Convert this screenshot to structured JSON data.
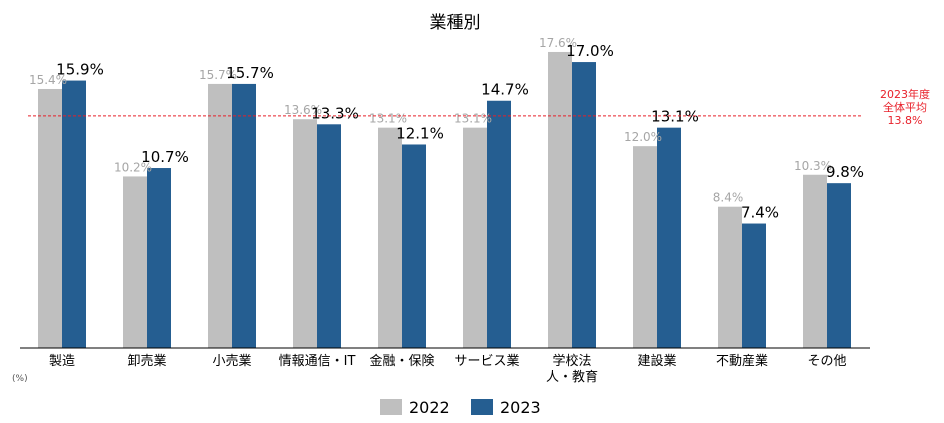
{
  "chart_data": {
    "type": "bar",
    "title": "業種別",
    "unit_label": "(%)",
    "categories": [
      "製造",
      "卸売業",
      "小売業",
      "情報通信・IT",
      "金融・保険",
      "サービス業",
      "学校法\n人・教育",
      "建設業",
      "不動産業",
      "その他"
    ],
    "series": [
      {
        "name": "2022",
        "values": [
          15.4,
          10.2,
          15.7,
          13.6,
          13.1,
          13.1,
          17.6,
          12.0,
          8.4,
          10.3
        ],
        "labels": [
          "15.4%",
          "10.2%",
          "15.7%",
          "13.6%",
          "13.1%",
          "13.1%",
          "17.6%",
          "12.0%",
          "8.4%",
          "10.3%"
        ]
      },
      {
        "name": "2023",
        "values": [
          15.9,
          10.7,
          15.7,
          13.3,
          12.1,
          14.7,
          17.0,
          13.1,
          7.4,
          9.8
        ],
        "labels": [
          "15.9%",
          "10.7%",
          "15.7%",
          "13.3%",
          "12.1%",
          "14.7%",
          "17.0%",
          "13.1%",
          "7.4%",
          "9.8%"
        ]
      }
    ],
    "reference_line": {
      "value": 13.8,
      "label_lines": [
        "2023年度",
        "全体平均",
        "13.8%"
      ]
    },
    "ylim": [
      0,
      20
    ],
    "grid": false,
    "legend_position": "bottom",
    "colors": {
      "2022": "#bfbfbf",
      "2023": "#255e91",
      "reference": "#e8202a",
      "label_2022": "#a6a6a6",
      "label_2023": "#000000"
    }
  }
}
